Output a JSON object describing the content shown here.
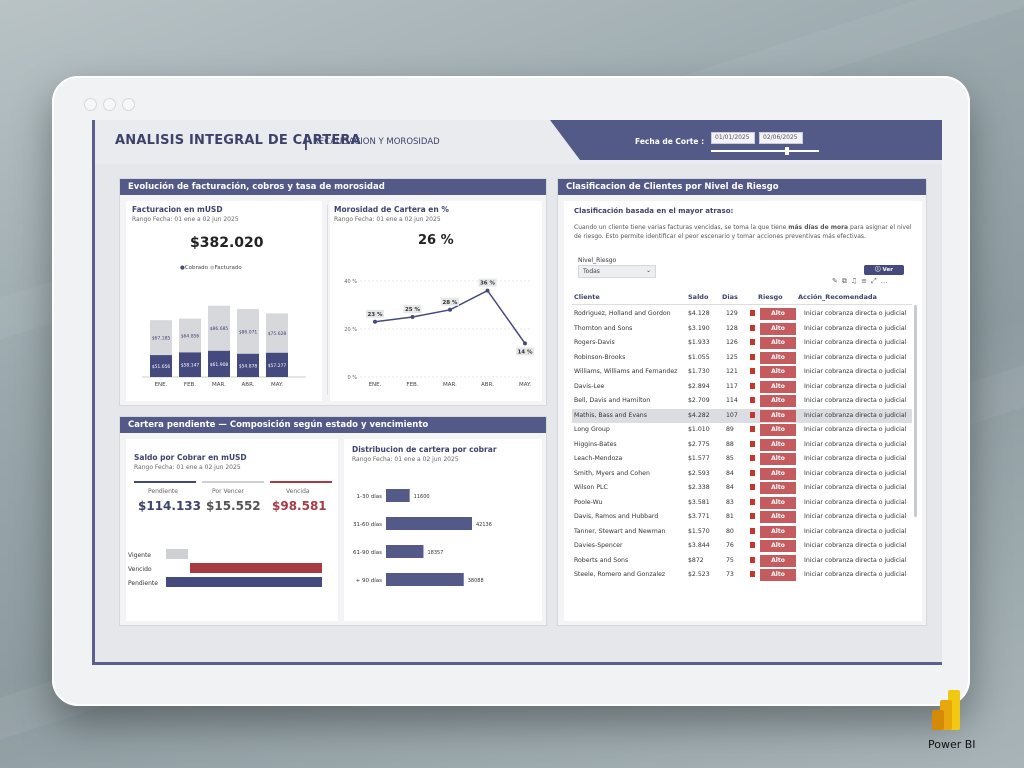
{
  "header": {
    "title": "ANALISIS INTEGRAL DE CARTERA",
    "subtitle": "RECAUDACION Y MOROSIDAD",
    "fecha_label": "Fecha de Corte :",
    "date_from": "01/01/2025",
    "date_to": "02/06/2025"
  },
  "panel1": {
    "title": "Evolución de facturación, cobros y tasa de morosidad",
    "fact": {
      "title": "Facturacion en mUSD",
      "range": "Rango Fecha: 01 ene a 02 jun 2025",
      "kpi": "$382.020",
      "legend_cobrado": "Cobrado",
      "legend_facturado": "Facturado"
    },
    "moro": {
      "title": "Morosidad de Cartera en %",
      "range": "Rango Fecha: 01 ene a 02 jun 2025",
      "kpi": "26 %"
    }
  },
  "panel2": {
    "title": "Cartera pendiente — Composición según estado  y vencimiento",
    "saldo": {
      "title": "Saldo por Cobrar en mUSD",
      "range": "Rango Fecha: 01 ene a 02 jun 2025",
      "pendiente_lbl": "Pendiente",
      "pendiente_val": "$114.133",
      "porvencer_lbl": "Por Vencer",
      "porvencer_val": "$15.552",
      "vencida_lbl": "Vencida",
      "vencida_val": "$98.581"
    },
    "dist": {
      "title": "Distribucion de cartera por cobrar",
      "range": "Rango Fecha: 01 ene a 02 jun 2025"
    }
  },
  "panel3": {
    "title": "Clasificacion de Clientes por Nivel de Riesgo",
    "subtitle": "Clasificación basada en el mayor atraso:",
    "desc1": "Cuando un cliente tiene varias facturas vencidas, se toma la que tiene ",
    "desc_bold": "más días de mora",
    "desc2": " para asignar el nivel",
    "desc3": "de riesgo. Esto permite identificar el peor escenario y tomar acciones preventivas más efectivas.",
    "filter_label": "Nivel_Riesgo",
    "filter_value": "Todas",
    "ver_detalle": "Ver Detalle",
    "columns": [
      "Cliente",
      "Saldo",
      "Dias",
      "Riesgo",
      "Acción_Recomendada"
    ],
    "rows": [
      {
        "cliente": "Rodriguez, Holland and Gordon",
        "saldo": "$4.128",
        "dias": "129",
        "riesgo": "Alto",
        "accion": "Iniciar cobranza directa o judicial"
      },
      {
        "cliente": "Thornton and Sons",
        "saldo": "$3.190",
        "dias": "128",
        "riesgo": "Alto",
        "accion": "Iniciar cobranza directa o judicial"
      },
      {
        "cliente": "Rogers-Davis",
        "saldo": "$1.933",
        "dias": "126",
        "riesgo": "Alto",
        "accion": "Iniciar cobranza directa o judicial"
      },
      {
        "cliente": "Robinson-Brooks",
        "saldo": "$1.055",
        "dias": "125",
        "riesgo": "Alto",
        "accion": "Iniciar cobranza directa o judicial"
      },
      {
        "cliente": "Williams, Williams and Fernandez",
        "saldo": "$1.730",
        "dias": "121",
        "riesgo": "Alto",
        "accion": "Iniciar cobranza directa o judicial"
      },
      {
        "cliente": "Davis-Lee",
        "saldo": "$2.894",
        "dias": "117",
        "riesgo": "Alto",
        "accion": "Iniciar cobranza directa o judicial"
      },
      {
        "cliente": "Bell, Davis and Hamilton",
        "saldo": "$2.709",
        "dias": "114",
        "riesgo": "Alto",
        "accion": "Iniciar cobranza directa o judicial"
      },
      {
        "cliente": "Mathis, Bass and Evans",
        "saldo": "$4.282",
        "dias": "107",
        "riesgo": "Alto",
        "accion": "Iniciar cobranza directa o judicial"
      },
      {
        "cliente": "Long Group",
        "saldo": "$1.010",
        "dias": "89",
        "riesgo": "Alto",
        "accion": "Iniciar cobranza directa o judicial"
      },
      {
        "cliente": "Higgins-Bates",
        "saldo": "$2.775",
        "dias": "88",
        "riesgo": "Alto",
        "accion": "Iniciar cobranza directa o judicial"
      },
      {
        "cliente": "Leach-Mendoza",
        "saldo": "$1.577",
        "dias": "85",
        "riesgo": "Alto",
        "accion": "Iniciar cobranza directa o judicial"
      },
      {
        "cliente": "Smith, Myers and Cohen",
        "saldo": "$2.593",
        "dias": "84",
        "riesgo": "Alto",
        "accion": "Iniciar cobranza directa o judicial"
      },
      {
        "cliente": "Wilson PLC",
        "saldo": "$2.338",
        "dias": "84",
        "riesgo": "Alto",
        "accion": "Iniciar cobranza directa o judicial"
      },
      {
        "cliente": "Poole-Wu",
        "saldo": "$3.581",
        "dias": "83",
        "riesgo": "Alto",
        "accion": "Iniciar cobranza directa o judicial"
      },
      {
        "cliente": "Davis, Ramos and Hubbard",
        "saldo": "$3.771",
        "dias": "81",
        "riesgo": "Alto",
        "accion": "Iniciar cobranza directa o judicial"
      },
      {
        "cliente": "Tanner, Stewart and Newman",
        "saldo": "$1.570",
        "dias": "80",
        "riesgo": "Alto",
        "accion": "Iniciar cobranza directa o judicial"
      },
      {
        "cliente": "Davies-Spencer",
        "saldo": "$3.844",
        "dias": "76",
        "riesgo": "Alto",
        "accion": "Iniciar cobranza directa o judicial"
      },
      {
        "cliente": "Roberts and Sons",
        "saldo": "$872",
        "dias": "75",
        "riesgo": "Alto",
        "accion": "Iniciar cobranza directa o judicial"
      },
      {
        "cliente": "Steele, Romero and Gonzalez",
        "saldo": "$2.523",
        "dias": "73",
        "riesgo": "Alto",
        "accion": "Iniciar cobranza directa o judicial"
      }
    ]
  },
  "chart_data": [
    {
      "type": "bar",
      "stacked": true,
      "categories": [
        "ENE.",
        "FEB.",
        "MAR.",
        "ABR.",
        "MAY."
      ],
      "series": [
        {
          "name": "Cobrado",
          "values": [
            51656,
            58147,
            61908,
            54878,
            57277
          ],
          "labels": [
            "$51.656",
            "$58.147",
            "$61.908",
            "$54.878",
            "$57.277"
          ]
        },
        {
          "name": "Facturado",
          "values": [
            67185,
            64856,
            86685,
            86071,
            75628
          ],
          "labels": [
            "$67.185",
            "$64.856",
            "$86.685",
            "$86.071",
            "$75.628"
          ]
        }
      ],
      "colors": {
        "Cobrado": "#454a7e",
        "Facturado": "#d7d8dc"
      }
    },
    {
      "type": "line",
      "categories": [
        "ENE.",
        "FEB.",
        "MAR.",
        "ABR.",
        "MAY."
      ],
      "values": [
        23,
        25,
        28,
        36,
        14
      ],
      "labels": [
        "23 %",
        "25 %",
        "28 %",
        "36 %",
        "14 %"
      ],
      "yticks": [
        "0 %",
        "20 %",
        "40 %"
      ],
      "ylim": [
        0,
        40
      ]
    },
    {
      "type": "bar",
      "orientation": "horizontal",
      "categories": [
        "1-30 días",
        "31-60 días",
        "61-90 días",
        "+ 90 días"
      ],
      "values": [
        11600,
        42136,
        18357,
        38088
      ]
    },
    {
      "type": "bar",
      "orientation": "horizontal",
      "categories": [
        "Vigente",
        "Vencido",
        "Pendiente"
      ],
      "values": [
        15552,
        98581,
        114133
      ],
      "colors": [
        "#cfd0d4",
        "#a83a44",
        "#454a7e"
      ]
    }
  ]
}
